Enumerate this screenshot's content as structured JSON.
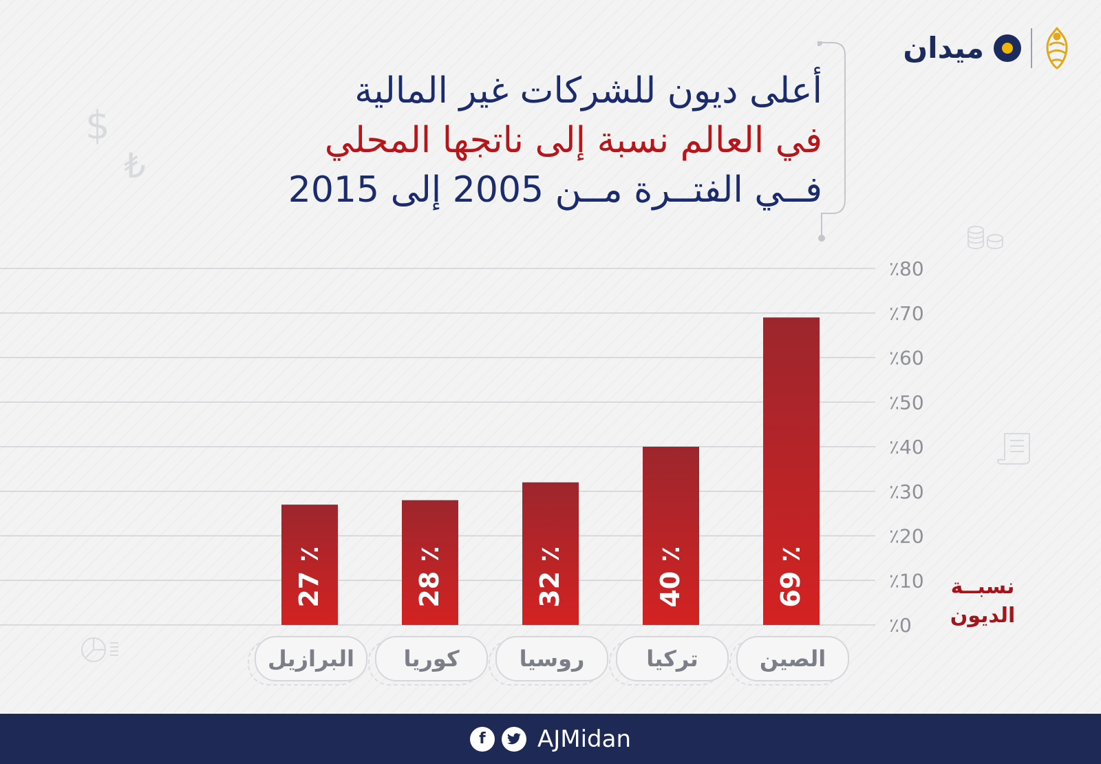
{
  "branding": {
    "site_name": "ميدان",
    "footer_handle": "AJMidan"
  },
  "title": {
    "line1": "أعلى ديون للشركات غير المالية",
    "line2": "في العالم نسبة إلى ناتجها المحلي",
    "line3": "فــي الفتــرة مــن 2005 إلى 2015"
  },
  "axis_caption": {
    "line1": "نسبــة",
    "line2": "الديون"
  },
  "chart_data": {
    "type": "bar",
    "categories": [
      "الصين",
      "تركيا",
      "روسيا",
      "كوريا",
      "البرازيل"
    ],
    "values": [
      69,
      40,
      32,
      28,
      27
    ],
    "value_labels": [
      "69 ٪",
      "40 ٪",
      "32 ٪",
      "28 ٪",
      "27 ٪"
    ],
    "yticks": [
      "٪0",
      "٪10",
      "٪20",
      "٪30",
      "٪40",
      "٪50",
      "٪60",
      "٪70",
      "٪80"
    ],
    "ylim": [
      0,
      80
    ],
    "ylabel": "نسبة الديون",
    "grid": true,
    "colors": {
      "bar_top": "#9c262d",
      "bar_bottom": "#d42222",
      "grid": "#cfd1d6",
      "tick": "#8e9097"
    }
  },
  "colors": {
    "navy": "#1c2b6b",
    "red": "#b5161b",
    "footer": "#1e2a55"
  },
  "icons": [
    "dollar-icon",
    "lira-icon",
    "coins-icon",
    "receipt-icon",
    "pie-chart-icon",
    "facebook-icon",
    "twitter-icon"
  ]
}
